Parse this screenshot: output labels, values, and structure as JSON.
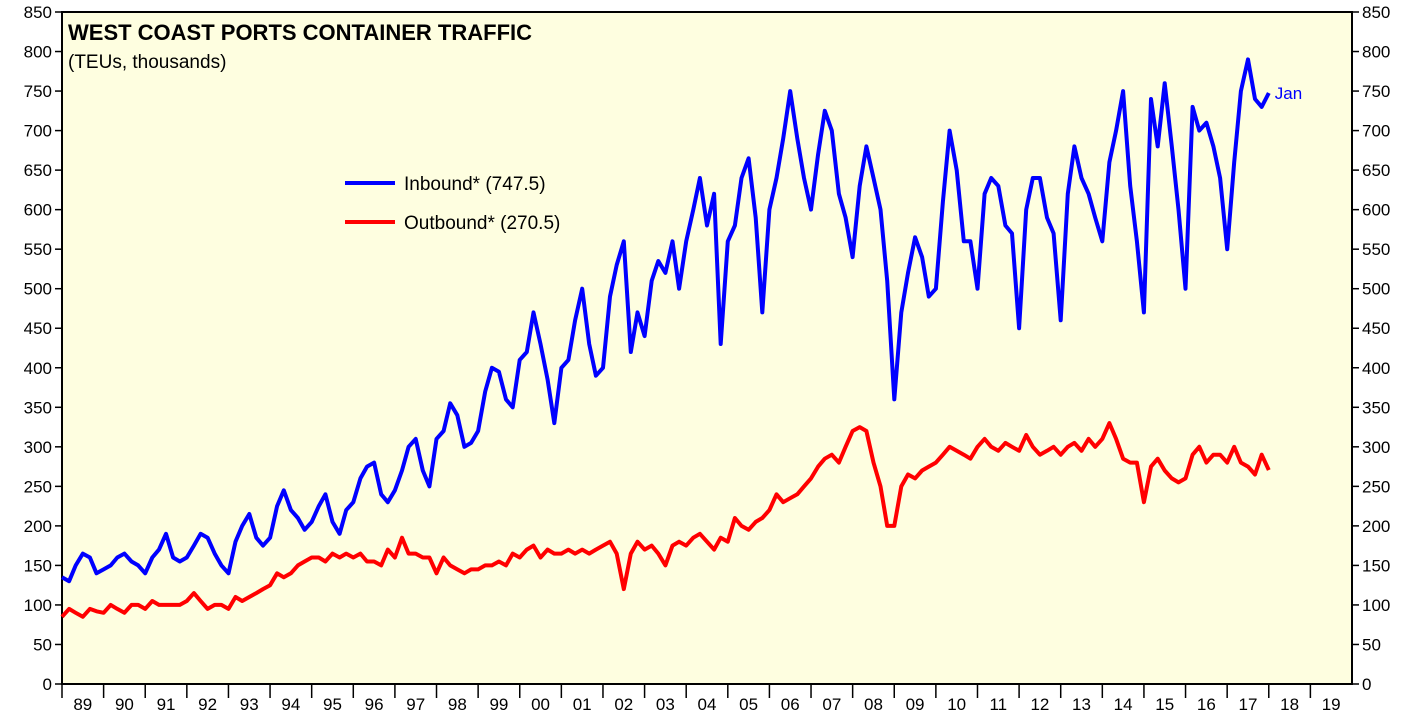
{
  "chart_data": {
    "type": "line",
    "title": "WEST COAST PORTS CONTAINER TRAFFIC",
    "subtitle": "(TEUs, thousands)",
    "annotation": "Jan",
    "background": "#fefee0",
    "xlim": [
      1989,
      2020
    ],
    "xticks": [
      {
        "value": 1989.5,
        "label": "89"
      },
      {
        "value": 1990.5,
        "label": "90"
      },
      {
        "value": 1991.5,
        "label": "91"
      },
      {
        "value": 1992.5,
        "label": "92"
      },
      {
        "value": 1993.5,
        "label": "93"
      },
      {
        "value": 1994.5,
        "label": "94"
      },
      {
        "value": 1995.5,
        "label": "95"
      },
      {
        "value": 1996.5,
        "label": "96"
      },
      {
        "value": 1997.5,
        "label": "97"
      },
      {
        "value": 1998.5,
        "label": "98"
      },
      {
        "value": 1999.5,
        "label": "99"
      },
      {
        "value": 2000.5,
        "label": "00"
      },
      {
        "value": 2001.5,
        "label": "01"
      },
      {
        "value": 2002.5,
        "label": "02"
      },
      {
        "value": 2003.5,
        "label": "03"
      },
      {
        "value": 2004.5,
        "label": "04"
      },
      {
        "value": 2005.5,
        "label": "05"
      },
      {
        "value": 2006.5,
        "label": "06"
      },
      {
        "value": 2007.5,
        "label": "07"
      },
      {
        "value": 2008.5,
        "label": "08"
      },
      {
        "value": 2009.5,
        "label": "09"
      },
      {
        "value": 2010.5,
        "label": "10"
      },
      {
        "value": 2011.5,
        "label": "11"
      },
      {
        "value": 2012.5,
        "label": "12"
      },
      {
        "value": 2013.5,
        "label": "13"
      },
      {
        "value": 2014.5,
        "label": "14"
      },
      {
        "value": 2015.5,
        "label": "15"
      },
      {
        "value": 2016.5,
        "label": "16"
      },
      {
        "value": 2017.5,
        "label": "17"
      },
      {
        "value": 2018.5,
        "label": "18"
      },
      {
        "value": 2019.5,
        "label": "19"
      }
    ],
    "ylim": [
      0,
      850
    ],
    "yticks": [
      0,
      50,
      100,
      150,
      200,
      250,
      300,
      350,
      400,
      450,
      500,
      550,
      600,
      650,
      700,
      750,
      800,
      850
    ],
    "x": [
      1989,
      1989.17,
      1989.33,
      1989.5,
      1989.67,
      1989.83,
      1990,
      1990.17,
      1990.33,
      1990.5,
      1990.67,
      1990.83,
      1991,
      1991.17,
      1991.33,
      1991.5,
      1991.67,
      1991.83,
      1992,
      1992.17,
      1992.33,
      1992.5,
      1992.67,
      1992.83,
      1993,
      1993.17,
      1993.33,
      1993.5,
      1993.67,
      1993.83,
      1994,
      1994.17,
      1994.33,
      1994.5,
      1994.67,
      1994.83,
      1995,
      1995.17,
      1995.33,
      1995.5,
      1995.67,
      1995.83,
      1996,
      1996.17,
      1996.33,
      1996.5,
      1996.67,
      1996.83,
      1997,
      1997.17,
      1997.33,
      1997.5,
      1997.67,
      1997.83,
      1998,
      1998.17,
      1998.33,
      1998.5,
      1998.67,
      1998.83,
      1999,
      1999.17,
      1999.33,
      1999.5,
      1999.67,
      1999.83,
      2000,
      2000.17,
      2000.33,
      2000.5,
      2000.67,
      2000.83,
      2001,
      2001.17,
      2001.33,
      2001.5,
      2001.67,
      2001.83,
      2002,
      2002.17,
      2002.33,
      2002.5,
      2002.67,
      2002.83,
      2003,
      2003.17,
      2003.33,
      2003.5,
      2003.67,
      2003.83,
      2004,
      2004.17,
      2004.33,
      2004.5,
      2004.67,
      2004.83,
      2005,
      2005.17,
      2005.33,
      2005.5,
      2005.67,
      2005.83,
      2006,
      2006.17,
      2006.33,
      2006.5,
      2006.67,
      2006.83,
      2007,
      2007.17,
      2007.33,
      2007.5,
      2007.67,
      2007.83,
      2008,
      2008.17,
      2008.33,
      2008.5,
      2008.67,
      2008.83,
      2009,
      2009.17,
      2009.33,
      2009.5,
      2009.67,
      2009.83,
      2010,
      2010.17,
      2010.33,
      2010.5,
      2010.67,
      2010.83,
      2011,
      2011.17,
      2011.33,
      2011.5,
      2011.67,
      2011.83,
      2012,
      2012.17,
      2012.33,
      2012.5,
      2012.67,
      2012.83,
      2013,
      2013.17,
      2013.33,
      2013.5,
      2013.67,
      2013.83,
      2014,
      2014.17,
      2014.33,
      2014.5,
      2014.67,
      2014.83,
      2015,
      2015.17,
      2015.33,
      2015.5,
      2015.67,
      2015.83,
      2016,
      2016.17,
      2016.33,
      2016.5,
      2016.67,
      2016.83,
      2017,
      2017.17,
      2017.33,
      2017.5,
      2017.67,
      2017.83,
      2018
    ],
    "series": [
      {
        "name": "Inbound* (747.5)",
        "color": "#0000ff",
        "values": [
          135,
          130,
          150,
          165,
          160,
          140,
          145,
          150,
          160,
          165,
          155,
          150,
          140,
          160,
          170,
          190,
          160,
          155,
          160,
          175,
          190,
          185,
          165,
          150,
          140,
          180,
          200,
          215,
          185,
          175,
          185,
          225,
          245,
          220,
          210,
          195,
          205,
          225,
          240,
          205,
          190,
          220,
          230,
          260,
          275,
          280,
          240,
          230,
          245,
          270,
          300,
          310,
          270,
          250,
          310,
          320,
          355,
          340,
          300,
          305,
          320,
          370,
          400,
          395,
          360,
          350,
          410,
          420,
          470,
          430,
          385,
          330,
          400,
          410,
          460,
          500,
          430,
          390,
          400,
          490,
          530,
          560,
          420,
          470,
          440,
          510,
          535,
          520,
          560,
          500,
          560,
          600,
          640,
          580,
          620,
          430,
          560,
          580,
          640,
          665,
          590,
          470,
          600,
          640,
          690,
          750,
          690,
          640,
          600,
          670,
          725,
          700,
          620,
          590,
          540,
          630,
          680,
          640,
          600,
          510,
          360,
          470,
          520,
          565,
          540,
          490,
          500,
          610,
          700,
          650,
          560,
          560,
          500,
          620,
          640,
          630,
          580,
          570,
          450,
          600,
          640,
          640,
          590,
          570,
          460,
          620,
          680,
          640,
          620,
          590,
          560,
          660,
          700,
          750,
          630,
          560,
          470,
          740,
          680,
          760,
          680,
          600,
          500,
          730,
          700,
          710,
          680,
          640,
          550,
          660,
          750,
          790,
          740,
          730,
          747.5
        ]
      },
      {
        "name": "Outbound* (270.5)",
        "color": "#ff0000",
        "values": [
          85,
          95,
          90,
          85,
          95,
          92,
          90,
          100,
          95,
          90,
          100,
          100,
          95,
          105,
          100,
          100,
          100,
          100,
          105,
          115,
          105,
          95,
          100,
          100,
          95,
          110,
          105,
          110,
          115,
          120,
          125,
          140,
          135,
          140,
          150,
          155,
          160,
          160,
          155,
          165,
          160,
          165,
          160,
          165,
          155,
          155,
          150,
          170,
          160,
          185,
          165,
          165,
          160,
          160,
          140,
          160,
          150,
          145,
          140,
          145,
          145,
          150,
          150,
          155,
          150,
          165,
          160,
          170,
          175,
          160,
          170,
          165,
          165,
          170,
          165,
          170,
          165,
          170,
          175,
          180,
          165,
          120,
          165,
          180,
          170,
          175,
          165,
          150,
          175,
          180,
          175,
          185,
          190,
          180,
          170,
          185,
          180,
          210,
          200,
          195,
          205,
          210,
          220,
          240,
          230,
          235,
          240,
          250,
          260,
          275,
          285,
          290,
          280,
          300,
          320,
          325,
          320,
          280,
          250,
          200,
          200,
          250,
          265,
          260,
          270,
          275,
          280,
          290,
          300,
          295,
          290,
          285,
          300,
          310,
          300,
          295,
          305,
          300,
          295,
          315,
          300,
          290,
          295,
          300,
          290,
          300,
          305,
          295,
          310,
          300,
          310,
          330,
          310,
          285,
          280,
          280,
          230,
          275,
          285,
          270,
          260,
          255,
          260,
          290,
          300,
          280,
          290,
          290,
          280,
          300,
          280,
          275,
          265,
          290,
          270.5
        ]
      }
    ]
  }
}
